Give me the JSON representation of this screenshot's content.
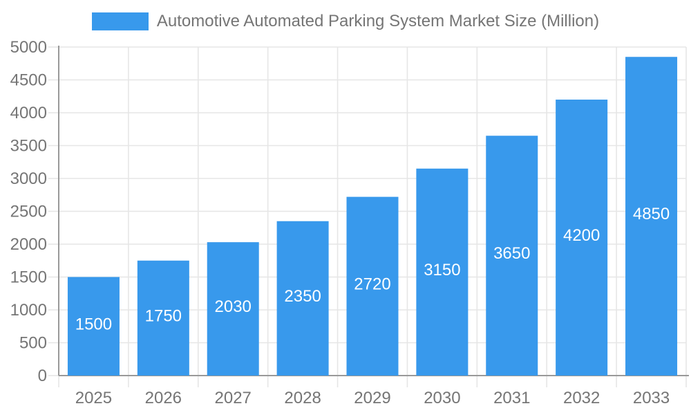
{
  "chart_data": {
    "type": "bar",
    "title": "Automotive Automated Parking System Market Size (Million)",
    "legend": "Automotive Automated Parking System Market Size (Million)",
    "legend_position": "top",
    "categories": [
      "2025",
      "2026",
      "2027",
      "2028",
      "2029",
      "2030",
      "2031",
      "2032",
      "2033"
    ],
    "values": [
      1500,
      1750,
      2030,
      2350,
      2720,
      3150,
      3650,
      4200,
      4850
    ],
    "xlabel": "",
    "ylabel": "",
    "ylim": [
      0,
      5000
    ],
    "ytick_step": 500,
    "ytick_labels": [
      "0",
      "500",
      "1000",
      "1500",
      "2000",
      "2500",
      "3000",
      "3500",
      "4000",
      "4500",
      "5000"
    ],
    "grid": true,
    "value_labels_inside_bars": true,
    "colors": {
      "bar": "#3899EC",
      "axis_line": "#999999",
      "gridline": "#e6e6e6",
      "tick_label": "#757575",
      "legend_text": "#757575",
      "value_label": "#ffffff",
      "background": "#ffffff"
    }
  }
}
